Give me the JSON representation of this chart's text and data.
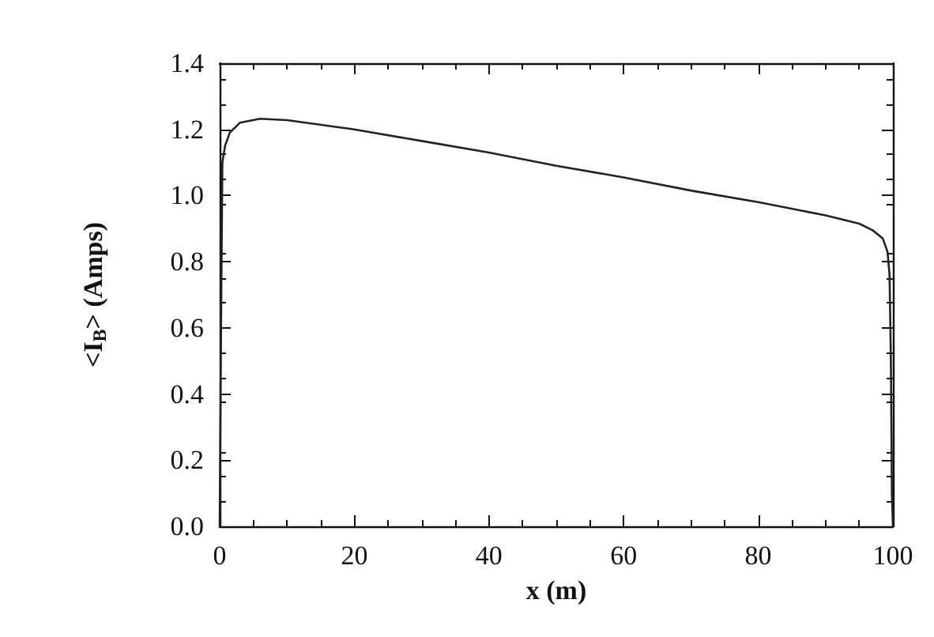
{
  "chart_data": {
    "type": "line",
    "xlabel": "x (m)",
    "ylabel": "<I$_{B}$> (Amps)",
    "x": [
      0,
      0.2,
      0.4,
      0.8,
      1.5,
      3,
      6,
      10,
      20,
      30,
      40,
      50,
      60,
      70,
      80,
      90,
      95,
      97,
      98.5,
      99.2,
      99.5,
      99.7,
      99.85,
      100
    ],
    "series": [
      {
        "color": "#222222",
        "values": [
          0,
          0.6,
          1.1,
          1.15,
          1.19,
          1.22,
          1.232,
          1.228,
          1.2,
          1.165,
          1.13,
          1.09,
          1.055,
          1.015,
          0.98,
          0.94,
          0.915,
          0.895,
          0.87,
          0.83,
          0.76,
          0.5,
          0.1,
          0
        ]
      }
    ],
    "xlim": [
      0,
      100
    ],
    "xticks": [
      0,
      20,
      40,
      60,
      80,
      100
    ],
    "ylim": [
      0,
      1.4
    ],
    "yticks": [
      {
        "value": 0,
        "label": "0.0"
      },
      0.2,
      0.4,
      0.6,
      0.8,
      {
        "value": 1,
        "label": "1.0"
      },
      1.2,
      1.4
    ],
    "grid": false,
    "marker": "none",
    "line_style": "solid"
  }
}
